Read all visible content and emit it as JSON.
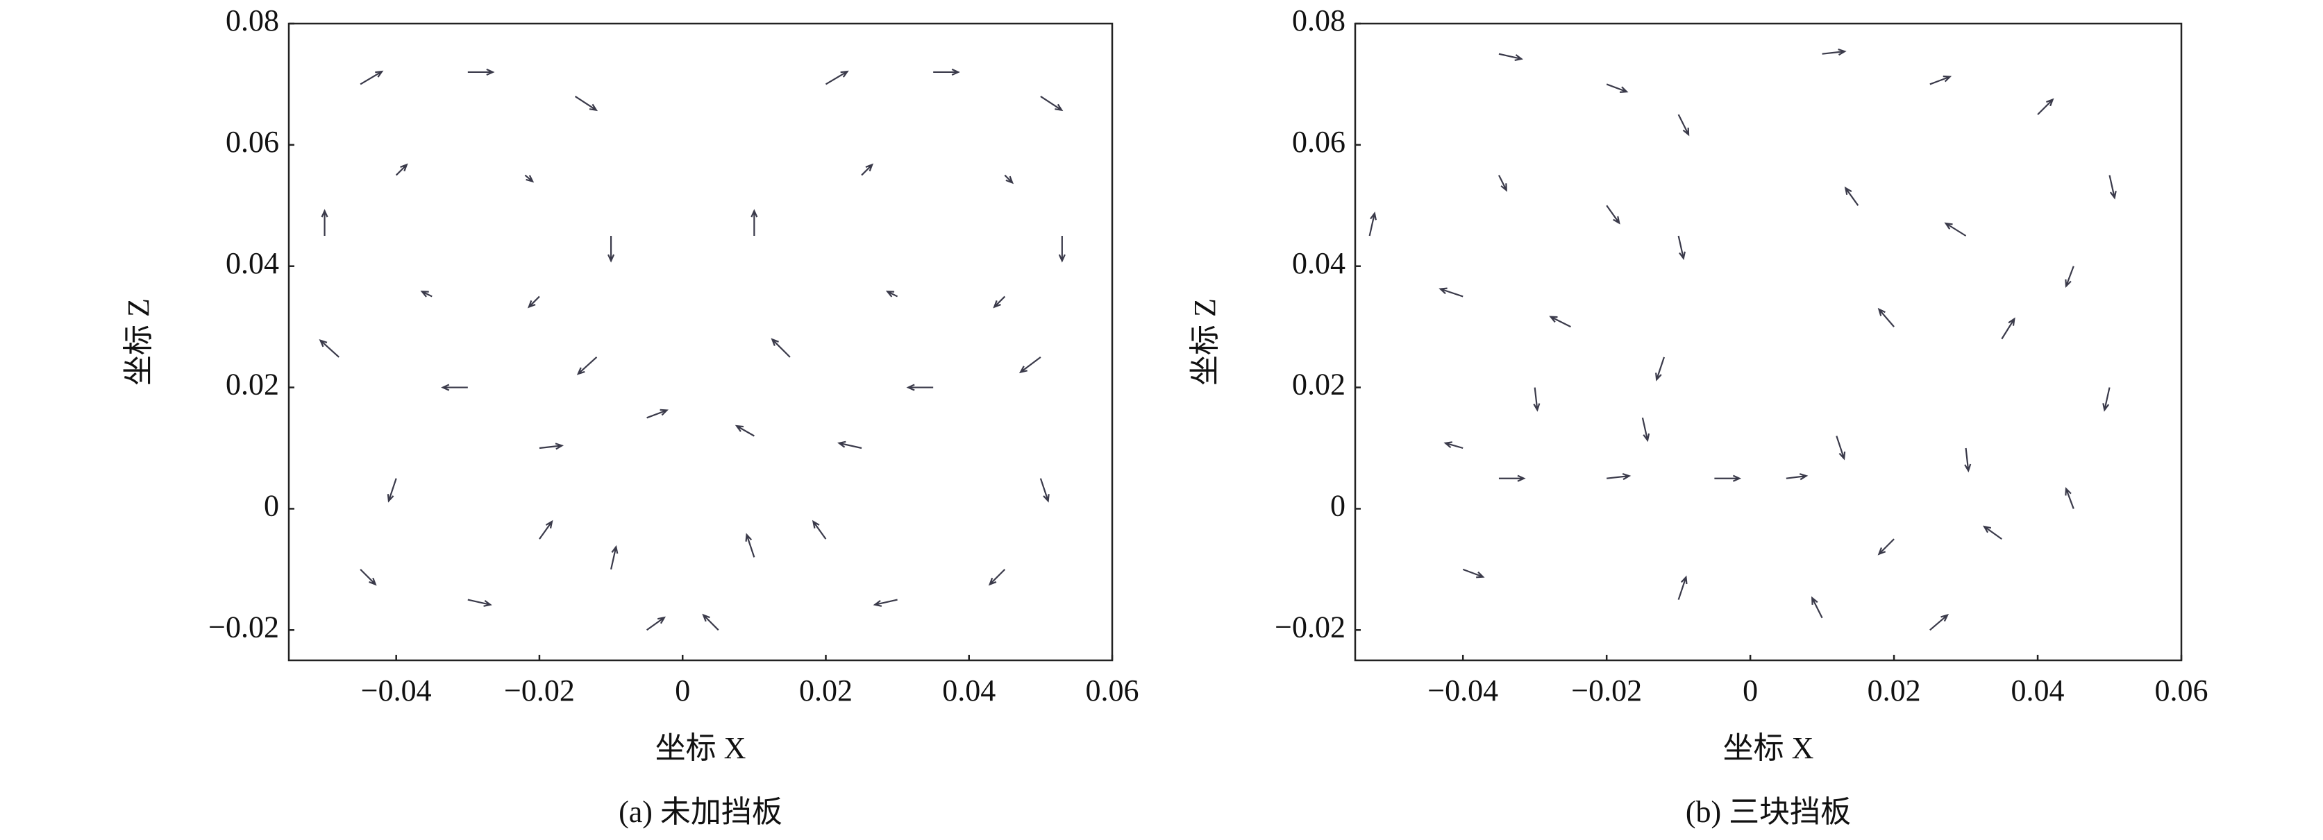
{
  "chart_data": [
    {
      "type": "quiver",
      "caption": "(a) 未加挡板",
      "xlabel": "坐标 X",
      "ylabel": "坐标 Z",
      "xlim": [
        -0.055,
        0.06
      ],
      "ylim": [
        -0.025,
        0.08
      ],
      "xticks": [
        {
          "value": -0.04,
          "label": "−0.04"
        },
        {
          "value": -0.02,
          "label": "−0.02"
        },
        0,
        0.02,
        0.04,
        0.06
      ],
      "yticks": [
        {
          "value": -0.02,
          "label": "−0.02"
        },
        0,
        0.02,
        0.04,
        0.06,
        0.08
      ],
      "color": "#3a3a4a",
      "x": [
        -0.045,
        -0.03,
        -0.015,
        -0.01,
        -0.012,
        -0.03,
        -0.048,
        -0.05,
        -0.04,
        -0.02,
        -0.035,
        -0.022,
        0.02,
        0.035,
        0.05,
        0.053,
        0.05,
        0.035,
        0.015,
        0.01,
        0.025,
        0.045,
        0.03,
        0.045,
        -0.04,
        -0.045,
        -0.03,
        -0.02,
        -0.01,
        -0.005,
        0.005,
        0.01,
        0.02,
        0.03,
        0.045,
        0.05,
        -0.005,
        0.01,
        -0.02,
        0.025
      ],
      "y": [
        0.07,
        0.072,
        0.068,
        0.045,
        0.025,
        0.02,
        0.025,
        0.045,
        0.055,
        0.035,
        0.035,
        0.055,
        0.07,
        0.072,
        0.068,
        0.045,
        0.025,
        0.02,
        0.025,
        0.045,
        0.055,
        0.035,
        0.035,
        0.055,
        0.005,
        -0.01,
        -0.015,
        -0.005,
        -0.01,
        -0.02,
        -0.02,
        -0.008,
        -0.005,
        -0.015,
        -0.01,
        0.005,
        0.015,
        0.012,
        0.01,
        0.01
      ],
      "u": [
        0.86,
        1,
        0.84,
        0,
        -0.74,
        -1,
        -0.74,
        0,
        0.42,
        -0.42,
        -0.4,
        0.3,
        0.86,
        1,
        0.84,
        0,
        -0.8,
        -1,
        -0.71,
        0,
        0.42,
        -0.42,
        -0.4,
        0.3,
        -0.3,
        0.6,
        0.9,
        0.5,
        0.2,
        0.7,
        -0.6,
        -0.3,
        -0.5,
        -0.9,
        -0.6,
        0.3,
        0.8,
        -0.7,
        0.9,
        -0.9
      ],
      "v": [
        0.51,
        0,
        -0.55,
        -1,
        -0.67,
        0,
        0.67,
        1,
        0.42,
        -0.42,
        0.2,
        -0.25,
        0.51,
        0,
        -0.55,
        -1,
        -0.6,
        0,
        0.71,
        1,
        0.42,
        -0.42,
        0.2,
        -0.3,
        -0.9,
        -0.6,
        -0.2,
        0.7,
        0.9,
        0.5,
        0.6,
        0.9,
        0.7,
        -0.2,
        -0.6,
        -0.9,
        0.3,
        0.4,
        0.1,
        0.2
      ]
    },
    {
      "type": "quiver",
      "caption": "(b) 三块挡板",
      "xlabel": "坐标 X",
      "ylabel": "坐标 Z",
      "xlim": [
        -0.055,
        0.06
      ],
      "ylim": [
        -0.025,
        0.08
      ],
      "xticks": [
        {
          "value": -0.04,
          "label": "−0.04"
        },
        {
          "value": -0.02,
          "label": "−0.02"
        },
        0,
        0.02,
        0.04,
        0.06
      ],
      "yticks": [
        {
          "value": -0.02,
          "label": "−0.02"
        },
        0,
        0.02,
        0.04,
        0.06,
        0.08
      ],
      "color": "#3a3a4a",
      "x": [
        -0.035,
        -0.02,
        -0.01,
        -0.035,
        -0.02,
        -0.01,
        -0.04,
        -0.025,
        -0.012,
        -0.03,
        -0.015,
        -0.04,
        0.01,
        0.025,
        0.04,
        0.05,
        0.015,
        0.03,
        0.045,
        0.02,
        0.035,
        0.05,
        0.012,
        0.03,
        -0.035,
        -0.02,
        -0.005,
        0.005,
        0.02,
        0.035,
        0.045,
        -0.04,
        -0.01,
        0.01,
        0.025,
        -0.053
      ],
      "y": [
        0.075,
        0.07,
        0.065,
        0.055,
        0.05,
        0.045,
        0.035,
        0.03,
        0.025,
        0.02,
        0.015,
        0.01,
        0.075,
        0.07,
        0.065,
        0.055,
        0.05,
        0.045,
        0.04,
        0.03,
        0.028,
        0.02,
        0.012,
        0.01,
        0.005,
        0.005,
        0.005,
        0.005,
        -0.005,
        -0.005,
        0.0,
        -0.01,
        -0.015,
        -0.018,
        -0.02,
        0.045
      ],
      "u": [
        0.9,
        0.8,
        0.4,
        0.3,
        0.5,
        0.2,
        -0.9,
        -0.8,
        -0.3,
        0.1,
        0.2,
        -0.7,
        0.9,
        0.8,
        0.6,
        0.2,
        -0.5,
        -0.8,
        -0.3,
        -0.6,
        0.5,
        -0.2,
        0.3,
        0.1,
        1,
        0.9,
        1,
        0.8,
        -0.6,
        -0.7,
        -0.3,
        0.8,
        0.3,
        -0.4,
        0.7,
        0.2
      ],
      "v": [
        -0.2,
        -0.3,
        -0.8,
        -0.6,
        -0.7,
        -0.9,
        0.3,
        0.4,
        -0.9,
        -0.9,
        -0.9,
        0.2,
        0.1,
        0.3,
        0.6,
        -0.9,
        0.7,
        0.5,
        -0.8,
        0.7,
        0.8,
        -0.9,
        -0.9,
        -0.9,
        0,
        0.1,
        0,
        0.1,
        -0.6,
        0.5,
        0.8,
        -0.3,
        0.9,
        0.8,
        0.6,
        0.9
      ]
    }
  ]
}
